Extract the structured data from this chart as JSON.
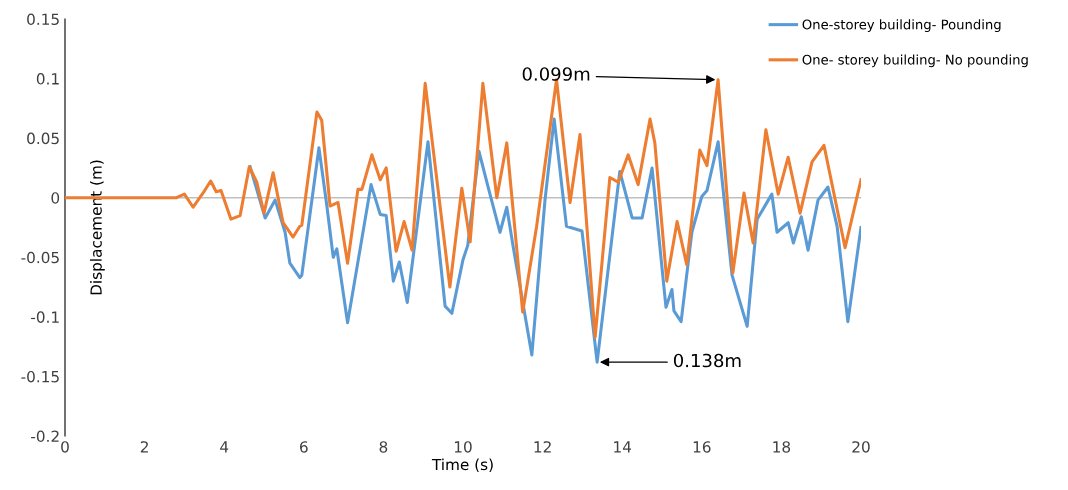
{
  "chart_data": {
    "type": "line",
    "xlabel": "Time (s)",
    "ylabel": "Displacement (m)",
    "xlim": [
      0,
      20
    ],
    "xticks": [
      0,
      2,
      4,
      6,
      8,
      10,
      12,
      14,
      16,
      18,
      20
    ],
    "ylim": [
      -0.2,
      0.15
    ],
    "yticks": [
      -0.2,
      -0.15,
      -0.1,
      -0.05,
      0,
      0.05,
      0.1,
      0.15
    ],
    "grid": false,
    "legend": "top right",
    "marker": "none",
    "line_style": "solid",
    "ref_lines": [
      {
        "axis": "y",
        "value": 0,
        "color": "#bfbfbf"
      }
    ],
    "annotations": [
      {
        "text": "0.099m",
        "x": 16.41,
        "y": 0.099
      },
      {
        "text": "0.138m",
        "x": 13.37,
        "y": -0.138
      }
    ],
    "series": [
      {
        "name": "One-storey building- Pounding",
        "color": "#5b9bd5",
        "x": [
          4.65,
          5.03,
          5.28,
          5.53,
          5.65,
          5.9,
          5.95,
          6.38,
          6.58,
          6.74,
          6.83,
          7.1,
          7.41,
          7.69,
          7.92,
          8.07,
          8.25,
          8.4,
          8.6,
          9.12,
          9.55,
          9.72,
          10.0,
          10.12,
          10.4,
          10.63,
          10.93,
          11.1,
          11.26,
          11.73,
          12.06,
          12.29,
          12.6,
          12.99,
          13.37,
          13.94,
          14.25,
          14.5,
          14.75,
          15.03,
          15.1,
          15.25,
          15.3,
          15.48,
          15.75,
          16.0,
          16.13,
          16.41,
          16.76,
          17.14,
          17.39,
          17.76,
          17.89,
          18.17,
          18.3,
          18.5,
          18.67,
          18.92,
          19.17,
          19.4,
          19.67,
          20.0
        ],
        "values": [
          0.026,
          -0.017,
          -0.002,
          -0.029,
          -0.055,
          -0.067,
          -0.065,
          0.042,
          -0.007,
          -0.05,
          -0.043,
          -0.105,
          -0.044,
          0.011,
          -0.014,
          -0.015,
          -0.07,
          -0.054,
          -0.088,
          0.047,
          -0.091,
          -0.097,
          -0.052,
          -0.04,
          0.039,
          0.009,
          -0.029,
          -0.008,
          -0.041,
          -0.132,
          -0.002,
          0.066,
          -0.024,
          -0.028,
          -0.138,
          0.022,
          -0.017,
          -0.017,
          0.025,
          -0.069,
          -0.092,
          -0.077,
          -0.095,
          -0.104,
          -0.029,
          0.001,
          0.006,
          0.047,
          -0.065,
          -0.108,
          -0.018,
          0.003,
          -0.029,
          -0.021,
          -0.038,
          -0.016,
          -0.044,
          -0.002,
          0.009,
          -0.024,
          -0.104,
          -0.025
        ]
      },
      {
        "name": "One- storey building- No pounding",
        "color": "#ed7d31",
        "x": [
          0,
          2.8,
          3.0,
          3.22,
          3.47,
          3.66,
          3.8,
          3.92,
          4.17,
          4.4,
          4.63,
          4.82,
          5.0,
          5.23,
          5.48,
          5.73,
          5.9,
          5.95,
          6.33,
          6.45,
          6.66,
          6.86,
          7.1,
          7.36,
          7.46,
          7.71,
          7.92,
          8.07,
          8.32,
          8.52,
          8.72,
          9.05,
          9.67,
          9.97,
          10.18,
          10.5,
          10.85,
          11.1,
          11.5,
          11.85,
          12.35,
          12.69,
          12.94,
          13.32,
          13.69,
          13.9,
          14.15,
          14.4,
          14.7,
          14.82,
          15.12,
          15.38,
          15.62,
          15.95,
          16.13,
          16.41,
          16.78,
          17.06,
          17.29,
          17.61,
          17.92,
          18.17,
          18.47,
          18.77,
          19.07,
          19.6,
          20.0
        ],
        "values": [
          0,
          0,
          0.003,
          -0.008,
          0.004,
          0.014,
          0.005,
          0.006,
          -0.018,
          -0.015,
          0.026,
          0.013,
          -0.013,
          0.021,
          -0.021,
          -0.033,
          -0.024,
          -0.023,
          0.072,
          0.065,
          -0.007,
          -0.004,
          -0.055,
          0.007,
          0.007,
          0.036,
          0.015,
          0.025,
          -0.045,
          -0.02,
          -0.044,
          0.096,
          -0.075,
          0.008,
          -0.037,
          0.096,
          0,
          0.046,
          -0.096,
          -0.024,
          0.099,
          -0.004,
          0.053,
          -0.117,
          0.017,
          0.013,
          0.036,
          0.011,
          0.066,
          0.046,
          -0.07,
          -0.02,
          -0.056,
          0.04,
          0.027,
          0.099,
          -0.063,
          0.004,
          -0.038,
          0.057,
          0.003,
          0.034,
          -0.013,
          0.03,
          0.044,
          -0.042,
          0.015
        ]
      }
    ]
  }
}
